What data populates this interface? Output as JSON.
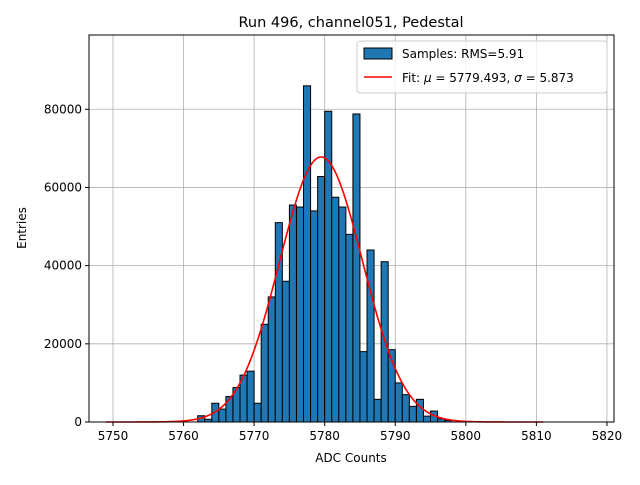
{
  "chart_data": {
    "type": "bar",
    "title": "Run 496, channel051, Pedestal",
    "xlabel": "ADC Counts",
    "ylabel": "Entries",
    "xlim": [
      5746.6,
      5821.0
    ],
    "ylim": [
      0,
      99000
    ],
    "grid": true,
    "legend_placement": "upper-right",
    "xticks": [
      5750,
      5760,
      5770,
      5780,
      5790,
      5800,
      5810,
      5820
    ],
    "yticks": [
      0,
      20000,
      40000,
      60000,
      80000
    ],
    "colors": {
      "bars": "#1f77b4",
      "bar_edge": "#000000",
      "fit": "#ff0000",
      "grid": "#b0b0b0"
    },
    "histogram": {
      "name": "Samples: RMS=5.91",
      "bins": [
        {
          "x0": 5762.0,
          "x1": 5763.0,
          "value": 1600
        },
        {
          "x0": 5763.0,
          "x1": 5764.0,
          "value": 700
        },
        {
          "x0": 5764.0,
          "x1": 5765.0,
          "value": 4800
        },
        {
          "x0": 5765.0,
          "x1": 5766.0,
          "value": 3300
        },
        {
          "x0": 5766.0,
          "x1": 5767.0,
          "value": 6500
        },
        {
          "x0": 5767.0,
          "x1": 5768.0,
          "value": 8800
        },
        {
          "x0": 5768.0,
          "x1": 5769.0,
          "value": 12000
        },
        {
          "x0": 5769.0,
          "x1": 5770.0,
          "value": 13000
        },
        {
          "x0": 5770.0,
          "x1": 5771.0,
          "value": 4800
        },
        {
          "x0": 5771.0,
          "x1": 5772.0,
          "value": 25000
        },
        {
          "x0": 5772.0,
          "x1": 5773.0,
          "value": 32000
        },
        {
          "x0": 5773.0,
          "x1": 5774.0,
          "value": 51000
        },
        {
          "x0": 5774.0,
          "x1": 5775.0,
          "value": 36000
        },
        {
          "x0": 5775.0,
          "x1": 5776.0,
          "value": 55500
        },
        {
          "x0": 5776.0,
          "x1": 5777.0,
          "value": 55000
        },
        {
          "x0": 5777.0,
          "x1": 5778.0,
          "value": 86000
        },
        {
          "x0": 5778.0,
          "x1": 5779.0,
          "value": 54000
        },
        {
          "x0": 5779.0,
          "x1": 5780.0,
          "value": 62800
        },
        {
          "x0": 5780.0,
          "x1": 5781.0,
          "value": 79500
        },
        {
          "x0": 5781.0,
          "x1": 5782.0,
          "value": 57500
        },
        {
          "x0": 5782.0,
          "x1": 5783.0,
          "value": 55000
        },
        {
          "x0": 5783.0,
          "x1": 5784.0,
          "value": 48000
        },
        {
          "x0": 5784.0,
          "x1": 5785.0,
          "value": 78800
        },
        {
          "x0": 5785.0,
          "x1": 5786.0,
          "value": 18000
        },
        {
          "x0": 5786.0,
          "x1": 5787.0,
          "value": 44000
        },
        {
          "x0": 5787.0,
          "x1": 5788.0,
          "value": 5800
        },
        {
          "x0": 5788.0,
          "x1": 5789.0,
          "value": 41000
        },
        {
          "x0": 5789.0,
          "x1": 5790.0,
          "value": 18500
        },
        {
          "x0": 5790.0,
          "x1": 5791.0,
          "value": 10000
        },
        {
          "x0": 5791.0,
          "x1": 5792.0,
          "value": 7000
        },
        {
          "x0": 5792.0,
          "x1": 5793.0,
          "value": 4000
        },
        {
          "x0": 5793.0,
          "x1": 5794.0,
          "value": 5800
        },
        {
          "x0": 5794.0,
          "x1": 5795.0,
          "value": 1500
        },
        {
          "x0": 5795.0,
          "x1": 5796.0,
          "value": 2800
        },
        {
          "x0": 5796.0,
          "x1": 5797.0,
          "value": 800
        },
        {
          "x0": 5797.0,
          "x1": 5798.0,
          "value": 400
        }
      ]
    },
    "fit": {
      "name_prefix": "Fit: ",
      "mu_symbol": "μ",
      "equals_mu": " = 5779.493, ",
      "sigma_symbol": "σ",
      "equals_sigma": " = 5.873",
      "mu": 5779.493,
      "sigma": 5.873,
      "amplitude": 67800,
      "x_range": [
        5749.0,
        5811.0
      ]
    }
  }
}
